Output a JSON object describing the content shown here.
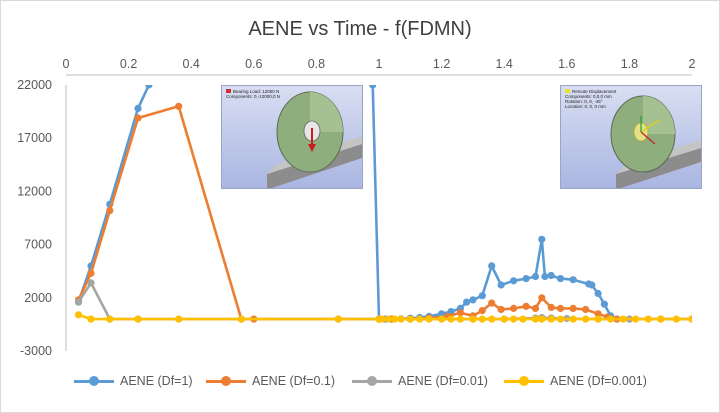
{
  "chart_data": {
    "type": "line",
    "title": "AENE vs Time - f(FDMN)",
    "xlabel": "",
    "ylabel": "",
    "xlim": [
      0,
      2
    ],
    "ylim": [
      -3000,
      22000
    ],
    "x_ticks": [
      0,
      0.2,
      0.4,
      0.6,
      0.8,
      1,
      1.2,
      1.4,
      1.6,
      1.8,
      2
    ],
    "x_tick_labels": [
      "0",
      "0.2",
      "0.4",
      "0.6",
      "0.8",
      "1",
      "1.2",
      "1.4",
      "1.6",
      "1.8",
      "2"
    ],
    "y_ticks": [
      -3000,
      2000,
      7000,
      12000,
      17000,
      22000
    ],
    "y_tick_labels": [
      "-3000",
      "2000",
      "7000",
      "12000",
      "17000",
      "22000"
    ],
    "x_axis_position": "top",
    "grid": false,
    "legend_position": "bottom",
    "series": [
      {
        "name": "AENE (Df=1)",
        "color": "#5b9bd5",
        "segments": [
          [
            [
              0.04,
              1600
            ],
            [
              0.08,
              5000
            ],
            [
              0.14,
              10800
            ],
            [
              0.23,
              19800
            ],
            [
              0.265,
              22000
            ]
          ],
          [
            [
              0.98,
              22000
            ],
            [
              1.0,
              0
            ],
            [
              1.02,
              0
            ],
            [
              1.04,
              0
            ],
            [
              1.07,
              30
            ],
            [
              1.1,
              80
            ],
            [
              1.13,
              150
            ],
            [
              1.16,
              250
            ],
            [
              1.2,
              500
            ],
            [
              1.23,
              700
            ],
            [
              1.26,
              1000
            ],
            [
              1.28,
              1600
            ],
            [
              1.3,
              1800
            ],
            [
              1.33,
              2200
            ],
            [
              1.36,
              5000
            ],
            [
              1.39,
              3200
            ],
            [
              1.43,
              3600
            ],
            [
              1.47,
              3800
            ],
            [
              1.5,
              4000
            ],
            [
              1.52,
              7500
            ],
            [
              1.53,
              4000
            ],
            [
              1.55,
              4100
            ],
            [
              1.58,
              3800
            ],
            [
              1.62,
              3700
            ],
            [
              1.67,
              3300
            ],
            [
              1.68,
              3200
            ],
            [
              1.7,
              2400
            ],
            [
              1.72,
              1400
            ],
            [
              1.74,
              300
            ],
            [
              1.76,
              0
            ]
          ]
        ]
      },
      {
        "name": "AENE (Df=0.1)",
        "color": "#ed7d31",
        "segments": [
          [
            [
              0.04,
              1800
            ],
            [
              0.08,
              4300
            ],
            [
              0.14,
              10200
            ],
            [
              0.23,
              18900
            ],
            [
              0.36,
              20000
            ],
            [
              0.56,
              0
            ],
            [
              0.6,
              0
            ],
            [
              0.87,
              0
            ],
            [
              1.0,
              0
            ],
            [
              1.04,
              0
            ],
            [
              1.1,
              0
            ],
            [
              1.16,
              100
            ],
            [
              1.22,
              250
            ],
            [
              1.26,
              600
            ],
            [
              1.3,
              300
            ],
            [
              1.33,
              800
            ],
            [
              1.36,
              1500
            ],
            [
              1.39,
              900
            ],
            [
              1.43,
              1000
            ],
            [
              1.47,
              1200
            ],
            [
              1.5,
              1000
            ],
            [
              1.52,
              2000
            ],
            [
              1.55,
              1100
            ],
            [
              1.58,
              1000
            ],
            [
              1.62,
              1000
            ],
            [
              1.66,
              900
            ],
            [
              1.7,
              500
            ],
            [
              1.73,
              200
            ],
            [
              1.76,
              0
            ],
            [
              1.8,
              0
            ],
            [
              1.9,
              0
            ],
            [
              2.0,
              0
            ]
          ]
        ]
      },
      {
        "name": "AENE (Df=0.01)",
        "color": "#a5a5a5",
        "segments": [
          [
            [
              0.04,
              1600
            ],
            [
              0.08,
              3400
            ],
            [
              0.14,
              0
            ],
            [
              0.23,
              0
            ],
            [
              0.36,
              0
            ],
            [
              0.56,
              0
            ],
            [
              0.87,
              0
            ],
            [
              1.0,
              0
            ],
            [
              1.1,
              0
            ],
            [
              1.2,
              0
            ],
            [
              1.3,
              0
            ],
            [
              1.4,
              0
            ],
            [
              1.5,
              100
            ],
            [
              1.52,
              150
            ],
            [
              1.55,
              100
            ],
            [
              1.6,
              50
            ],
            [
              1.7,
              0
            ],
            [
              1.8,
              0
            ],
            [
              2.0,
              0
            ]
          ]
        ]
      },
      {
        "name": "AENE (Df=0.001)",
        "color": "#ffc000",
        "segments": [
          [
            [
              0.04,
              400
            ],
            [
              0.08,
              0
            ],
            [
              0.14,
              0
            ],
            [
              0.23,
              0
            ],
            [
              0.36,
              0
            ],
            [
              0.56,
              0
            ],
            [
              0.87,
              0
            ],
            [
              1.0,
              0
            ],
            [
              1.01,
              0
            ],
            [
              1.03,
              0
            ],
            [
              1.05,
              0
            ],
            [
              1.07,
              0
            ],
            [
              1.1,
              0
            ],
            [
              1.13,
              0
            ],
            [
              1.16,
              0
            ],
            [
              1.2,
              0
            ],
            [
              1.23,
              0
            ],
            [
              1.26,
              0
            ],
            [
              1.3,
              0
            ],
            [
              1.33,
              0
            ],
            [
              1.36,
              0
            ],
            [
              1.4,
              0
            ],
            [
              1.43,
              0
            ],
            [
              1.46,
              0
            ],
            [
              1.5,
              0
            ],
            [
              1.52,
              0
            ],
            [
              1.55,
              0
            ],
            [
              1.58,
              0
            ],
            [
              1.62,
              0
            ],
            [
              1.66,
              0
            ],
            [
              1.7,
              0
            ],
            [
              1.74,
              0
            ],
            [
              1.78,
              0
            ],
            [
              1.82,
              0
            ],
            [
              1.86,
              0
            ],
            [
              1.9,
              0
            ],
            [
              1.95,
              0
            ],
            [
              2.0,
              0
            ]
          ]
        ]
      }
    ]
  },
  "insets": [
    {
      "caption_lines": [
        "Bearing Load: 12000 N",
        "Components: 0,-12000,0 N"
      ],
      "legend_swatch_color": "#d23030",
      "arrow_color": "#c81e1e"
    },
    {
      "caption_lines": [
        "Remote Displacement",
        "Components: 0,0,0 mm",
        "Rotation: 0, 0, -45°",
        "Location: 0, 0, 0 mm"
      ],
      "legend_swatch_color": "#e8e22a",
      "arrow_color": "#d9d21a"
    }
  ]
}
